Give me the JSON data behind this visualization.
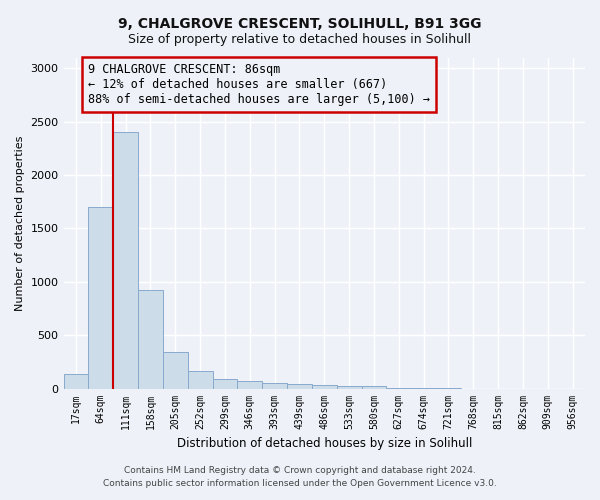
{
  "title_line1": "9, CHALGROVE CRESCENT, SOLIHULL, B91 3GG",
  "title_line2": "Size of property relative to detached houses in Solihull",
  "xlabel": "Distribution of detached houses by size in Solihull",
  "ylabel": "Number of detached properties",
  "categories": [
    "17sqm",
    "64sqm",
    "111sqm",
    "158sqm",
    "205sqm",
    "252sqm",
    "299sqm",
    "346sqm",
    "393sqm",
    "439sqm",
    "486sqm",
    "533sqm",
    "580sqm",
    "627sqm",
    "674sqm",
    "721sqm",
    "768sqm",
    "815sqm",
    "862sqm",
    "909sqm",
    "956sqm"
  ],
  "values": [
    140,
    1700,
    2400,
    920,
    340,
    160,
    90,
    70,
    50,
    40,
    30,
    25,
    25,
    3,
    3,
    2,
    0,
    0,
    0,
    0,
    0
  ],
  "bar_color": "#ccdce8",
  "bar_edge_color": "#88aacc",
  "vline_x": 1.5,
  "vline_color": "#cc0000",
  "ylim": [
    0,
    3100
  ],
  "yticks": [
    0,
    500,
    1000,
    1500,
    2000,
    2500,
    3000
  ],
  "annotation_text": "9 CHALGROVE CRESCENT: 86sqm\n← 12% of detached houses are smaller (667)\n88% of semi-detached houses are larger (5,100) →",
  "annotation_box_color": "#cc0000",
  "footer_line1": "Contains HM Land Registry data © Crown copyright and database right 2024.",
  "footer_line2": "Contains public sector information licensed under the Open Government Licence v3.0.",
  "background_color": "#eef2f8",
  "grid_color": "#ffffff"
}
